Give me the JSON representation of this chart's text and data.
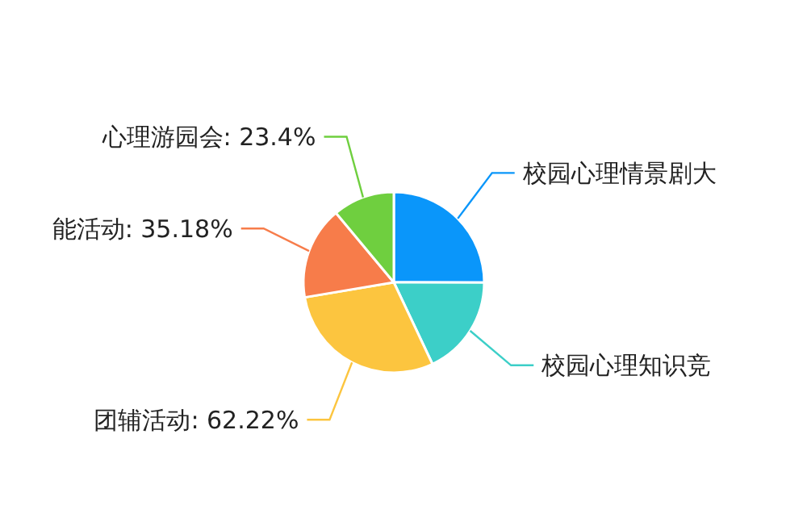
{
  "chart_data": {
    "type": "pie",
    "categories": [
      "校园心理情景剧大",
      "校园心理知识竞",
      "团辅活动",
      "能活动",
      "心理游园会"
    ],
    "values": [
      53,
      38,
      62.22,
      35.18,
      23.4
    ],
    "value_labels": [
      null,
      null,
      "62.22%",
      "35.18%",
      "23.4%"
    ],
    "colors": [
      "#0a96fa",
      "#3ccfc8",
      "#fcc53f",
      "#f77c4a",
      "#6fcf3f"
    ]
  }
}
